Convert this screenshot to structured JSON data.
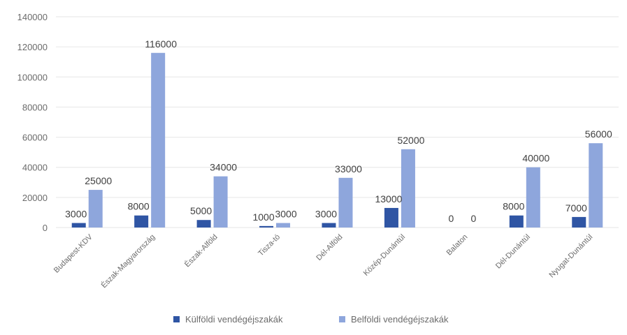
{
  "chart_data": {
    "type": "bar",
    "title": "",
    "xlabel": "",
    "ylabel": "",
    "ylim": [
      0,
      140000
    ],
    "yticks": [
      0,
      20000,
      40000,
      60000,
      80000,
      100000,
      120000,
      140000
    ],
    "ytick_labels": [
      "0",
      "20000",
      "40000",
      "60000",
      "80000",
      "100000",
      "120000",
      "140000"
    ],
    "grid": true,
    "legend_position": "bottom",
    "categories": [
      "Budapest-KDV",
      "Észak-Magyarország",
      "Észak-Alföld",
      "Tisza-tó",
      "Dél-Alföld",
      "Közép-Dunántúl",
      "Balaton",
      "Dél-Dunántúl",
      "Nyugat-Dunántúl"
    ],
    "series": [
      {
        "name": "Külföldi vendégéjszakák",
        "color": "#2f55a4",
        "values": [
          3000,
          8000,
          5000,
          1000,
          3000,
          13000,
          0,
          8000,
          7000
        ],
        "labels": [
          "3000",
          "8000",
          "5000",
          "1000",
          "3000",
          "13000",
          "0",
          "8000",
          "7000"
        ]
      },
      {
        "name": "Belföldi vendégéjszakák",
        "color": "#8ea6dc",
        "values": [
          25000,
          116000,
          34000,
          3000,
          33000,
          52000,
          0,
          40000,
          56000
        ],
        "labels": [
          "25000",
          "116000",
          "34000",
          "3000",
          "33000",
          "52000",
          "0",
          "40000",
          "56000"
        ]
      }
    ]
  }
}
